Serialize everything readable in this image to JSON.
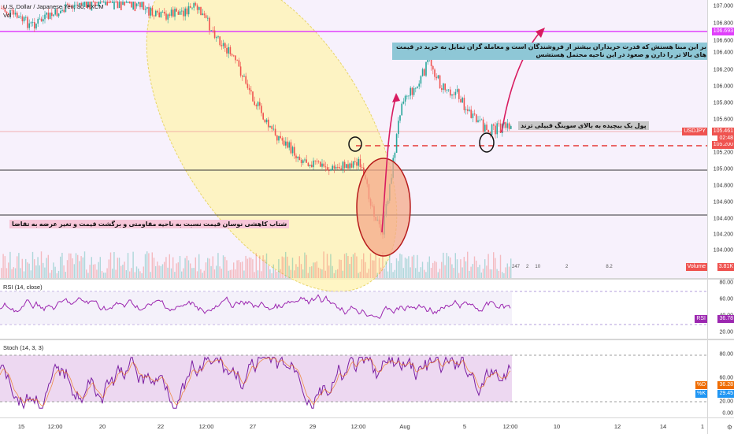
{
  "chart_info": {
    "symbol_line": "U.S. Dollar / Japanese Yen, 30, FXCM",
    "volume_label": "Vol"
  },
  "price_axis": {
    "ticks": [
      "107.000",
      "106.800",
      "106.600",
      "106.400",
      "106.200",
      "106.000",
      "105.800",
      "105.600",
      "105.200",
      "105.000",
      "104.800",
      "104.600",
      "104.400",
      "104.200",
      "104.000"
    ],
    "tag_top": "106.693",
    "tag_symbol": "USDJPY",
    "tag_price": "105.461",
    "tag_time": "02:48",
    "tag_dashed": "105.200",
    "volume_tag": "Volume",
    "volume_value": "3.81K"
  },
  "annotations": {
    "top_right": "بر این مبنا هستش که قدرت خریداران بیشتر از فروشندگان است و معامله گران تمایل به خرید در قیمت های بالا تر را دارن و صعود در این ناحیه محتمل هستشس",
    "pullback": "پول بک بیچیده به بالای سوینگ قبیلی ترند",
    "left_bottom": "شتاب کاهشی نوسان قیمت نسبت به ناحیه مقاومتی و برگشت قیمت و تغیر عرضه به تقاضا"
  },
  "event_badges": [
    "247",
    "2",
    "10",
    "2",
    "8.2"
  ],
  "rsi": {
    "label": "RSI (14, close)",
    "ticks": [
      "80.00",
      "60.00",
      "40.00",
      "20.00"
    ],
    "tag_name": "RSI",
    "tag_value": "36.78"
  },
  "stoch": {
    "label": "Stoch (14, 3, 3)",
    "ticks": [
      "80.00",
      "60.00",
      "20.00",
      "0.00"
    ],
    "tag_k_name": "%D",
    "tag_k_value": "36.28",
    "tag_d_name": "%K",
    "tag_d_value": "29.45"
  },
  "time_axis": [
    "15",
    "12:00",
    "20",
    "22",
    "12:00",
    "27",
    "29",
    "12:00",
    "Aug",
    "5",
    "12:00",
    "10",
    "12",
    "14",
    "1"
  ],
  "colors": {
    "bull": "#26a69a",
    "bear": "#ef5350",
    "magenta": "#e040fb",
    "ellipse_fill": "#fff3b0",
    "circle_fill": "#f4a98a",
    "rsi_line": "#9c27b0",
    "annotation_blue": "#8ec7d6",
    "annotation_gray": "#c7c7c7",
    "annotation_pink": "#f7c6d8"
  }
}
